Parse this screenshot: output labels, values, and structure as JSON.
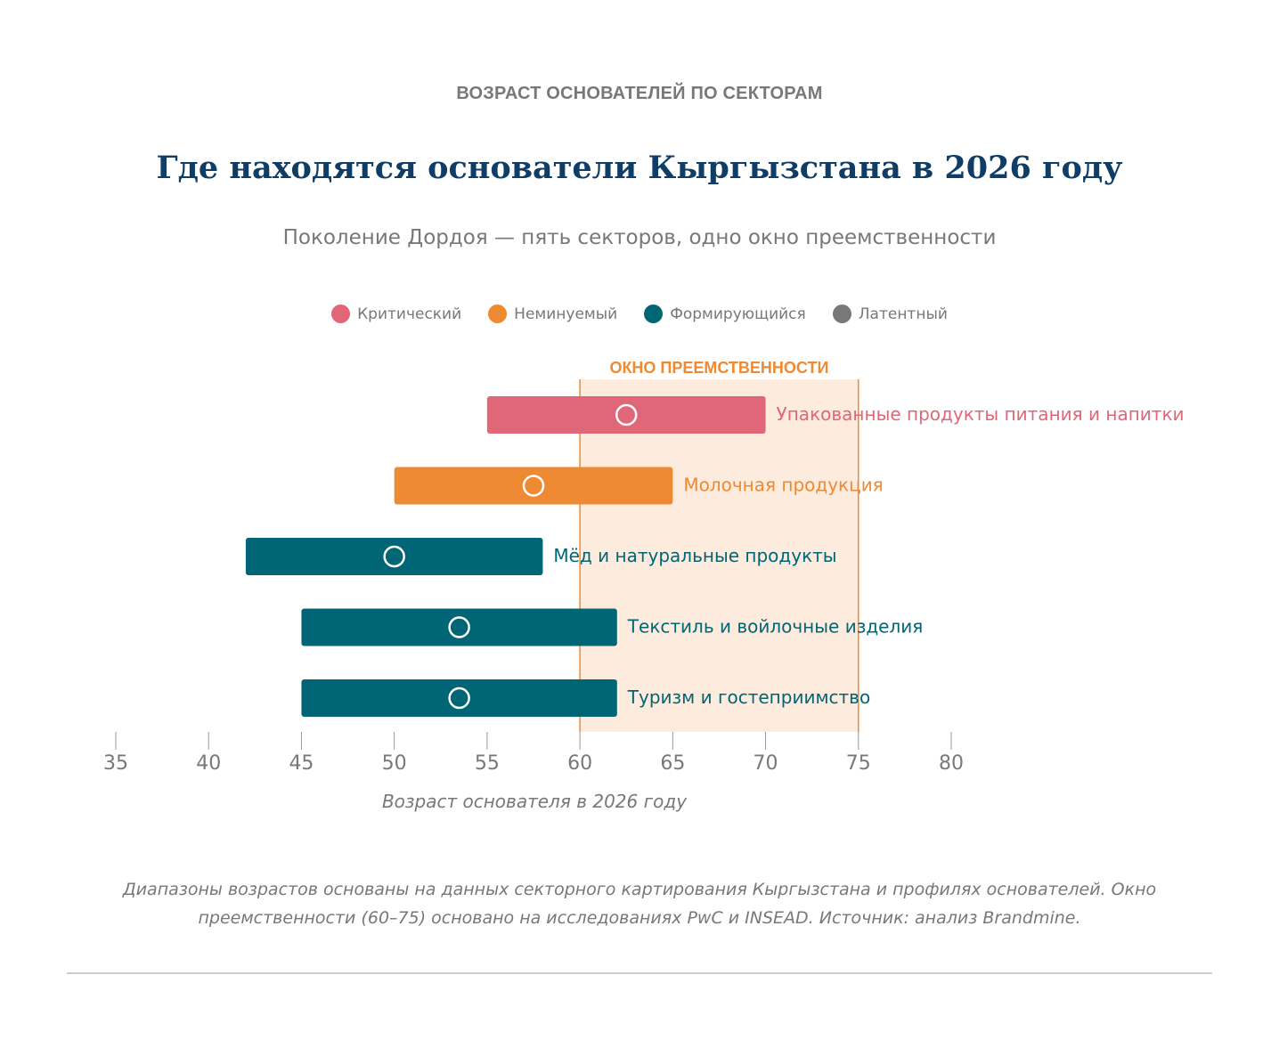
{
  "header": {
    "eyebrow": "ВОЗРАСТ ОСНОВАТЕЛЕЙ ПО СЕКТОРАМ",
    "title": "Где находятся основатели Кыргызстана в 2026 году",
    "subtitle": "Поколение Дордоя — пять секторов, одно окно преемственности"
  },
  "legend": {
    "items": [
      {
        "label": "Критический",
        "color": "#e06777"
      },
      {
        "label": "Неминуемый",
        "color": "#ee8a33"
      },
      {
        "label": "Формирующийся",
        "color": "#006675"
      },
      {
        "label": "Латентный",
        "color": "#76787a"
      }
    ]
  },
  "footnote": "Диапазоны возрастов основаны на данных секторного картирования Кыргызстана и профилях основателей. Окно преемственности (60–75) основано на исследованиях PwC и INSEAD. Источник: анализ Brandmine.",
  "colors": {
    "eyebrow": "#76787a",
    "title": "#0f3d66",
    "subtitle": "#76787a",
    "axis": "#76787a",
    "window_fill": "#fdebdd",
    "window_line": "#ee8a33",
    "rule": "#cccccc"
  },
  "chart_data": {
    "type": "range-bar",
    "xlabel": "Возраст основателя в 2026 году",
    "xlim": [
      35,
      80
    ],
    "xticks": [
      35,
      40,
      45,
      50,
      55,
      60,
      65,
      70,
      75,
      80
    ],
    "window": {
      "label": "ОКНО ПРЕЕМСТВЕННОСТИ",
      "start": 60,
      "end": 75
    },
    "series": [
      {
        "name": "Упакованные продукты питания и напитки",
        "status": "Критический",
        "min": 55,
        "max": 70,
        "median": 62.5,
        "color": "#e06777"
      },
      {
        "name": "Молочная продукция",
        "status": "Неминуемый",
        "min": 50,
        "max": 65,
        "median": 57.5,
        "color": "#ee8a33"
      },
      {
        "name": "Мёд и натуральные продукты",
        "status": "Формирующийся",
        "min": 42,
        "max": 58,
        "median": 50,
        "color": "#006675"
      },
      {
        "name": "Текстиль и войлочные изделия",
        "status": "Формирующийся",
        "min": 45,
        "max": 62,
        "median": 53.5,
        "color": "#006675"
      },
      {
        "name": "Туризм и гостеприимство",
        "status": "Формирующийся",
        "min": 45,
        "max": 62,
        "median": 53.5,
        "color": "#006675"
      }
    ]
  }
}
